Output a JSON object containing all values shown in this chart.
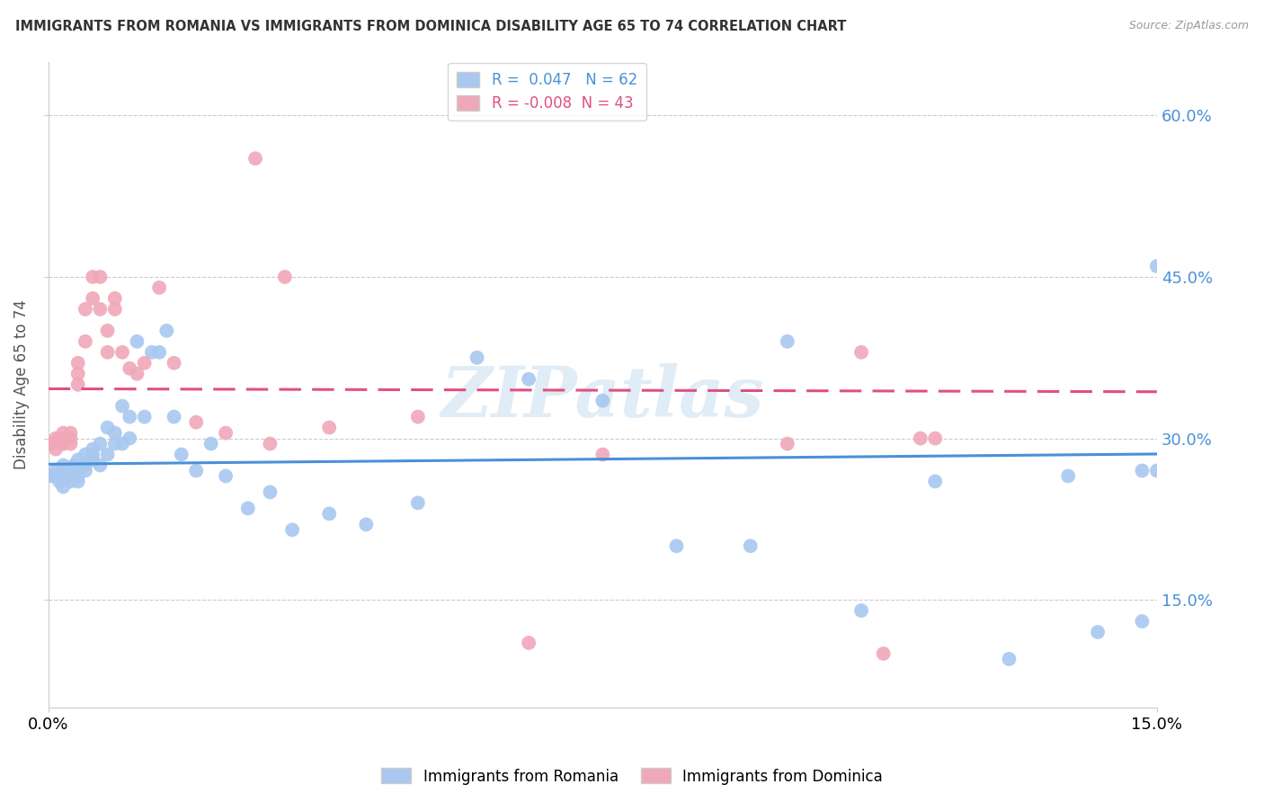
{
  "title": "IMMIGRANTS FROM ROMANIA VS IMMIGRANTS FROM DOMINICA DISABILITY AGE 65 TO 74 CORRELATION CHART",
  "source": "Source: ZipAtlas.com",
  "ylabel": "Disability Age 65 to 74",
  "x_min": 0.0,
  "x_max": 0.15,
  "y_min": 0.05,
  "y_max": 0.65,
  "y_ticks": [
    0.15,
    0.3,
    0.45,
    0.6
  ],
  "y_tick_labels": [
    "15.0%",
    "30.0%",
    "45.0%",
    "60.0%"
  ],
  "romania_color": "#a8c8f0",
  "dominica_color": "#f0a8b8",
  "romania_line_color": "#4a90d9",
  "dominica_line_color": "#e05080",
  "R_romania": 0.047,
  "N_romania": 62,
  "R_dominica": -0.008,
  "N_dominica": 43,
  "watermark_text": "ZIPatlas",
  "romania_x": [
    0.0005,
    0.001,
    0.001,
    0.0015,
    0.002,
    0.002,
    0.002,
    0.0025,
    0.003,
    0.003,
    0.003,
    0.0035,
    0.004,
    0.004,
    0.004,
    0.005,
    0.005,
    0.005,
    0.006,
    0.006,
    0.006,
    0.007,
    0.007,
    0.008,
    0.008,
    0.009,
    0.009,
    0.01,
    0.01,
    0.011,
    0.011,
    0.012,
    0.013,
    0.014,
    0.015,
    0.016,
    0.017,
    0.018,
    0.02,
    0.022,
    0.024,
    0.027,
    0.03,
    0.033,
    0.038,
    0.043,
    0.05,
    0.058,
    0.065,
    0.075,
    0.085,
    0.095,
    0.1,
    0.11,
    0.12,
    0.13,
    0.138,
    0.148,
    0.15,
    0.15,
    0.148,
    0.142
  ],
  "romania_y": [
    0.265,
    0.265,
    0.27,
    0.26,
    0.265,
    0.275,
    0.255,
    0.27,
    0.265,
    0.27,
    0.26,
    0.275,
    0.28,
    0.265,
    0.26,
    0.285,
    0.27,
    0.275,
    0.29,
    0.28,
    0.285,
    0.295,
    0.275,
    0.31,
    0.285,
    0.305,
    0.295,
    0.33,
    0.295,
    0.32,
    0.3,
    0.39,
    0.32,
    0.38,
    0.38,
    0.4,
    0.32,
    0.285,
    0.27,
    0.295,
    0.265,
    0.235,
    0.25,
    0.215,
    0.23,
    0.22,
    0.24,
    0.375,
    0.355,
    0.335,
    0.2,
    0.2,
    0.39,
    0.14,
    0.26,
    0.095,
    0.265,
    0.27,
    0.27,
    0.46,
    0.13,
    0.12
  ],
  "dominica_x": [
    0.0005,
    0.001,
    0.001,
    0.0015,
    0.002,
    0.002,
    0.002,
    0.003,
    0.003,
    0.003,
    0.004,
    0.004,
    0.004,
    0.005,
    0.005,
    0.006,
    0.006,
    0.007,
    0.007,
    0.008,
    0.008,
    0.009,
    0.009,
    0.01,
    0.011,
    0.012,
    0.013,
    0.015,
    0.017,
    0.02,
    0.024,
    0.03,
    0.038,
    0.05,
    0.075,
    0.1,
    0.11,
    0.113,
    0.118,
    0.12,
    0.065,
    0.032,
    0.028
  ],
  "dominica_y": [
    0.295,
    0.29,
    0.3,
    0.3,
    0.295,
    0.305,
    0.295,
    0.3,
    0.295,
    0.305,
    0.35,
    0.36,
    0.37,
    0.39,
    0.42,
    0.43,
    0.45,
    0.45,
    0.42,
    0.4,
    0.38,
    0.43,
    0.42,
    0.38,
    0.365,
    0.36,
    0.37,
    0.44,
    0.37,
    0.315,
    0.305,
    0.295,
    0.31,
    0.32,
    0.285,
    0.295,
    0.38,
    0.1,
    0.3,
    0.3,
    0.11,
    0.45,
    0.56
  ]
}
